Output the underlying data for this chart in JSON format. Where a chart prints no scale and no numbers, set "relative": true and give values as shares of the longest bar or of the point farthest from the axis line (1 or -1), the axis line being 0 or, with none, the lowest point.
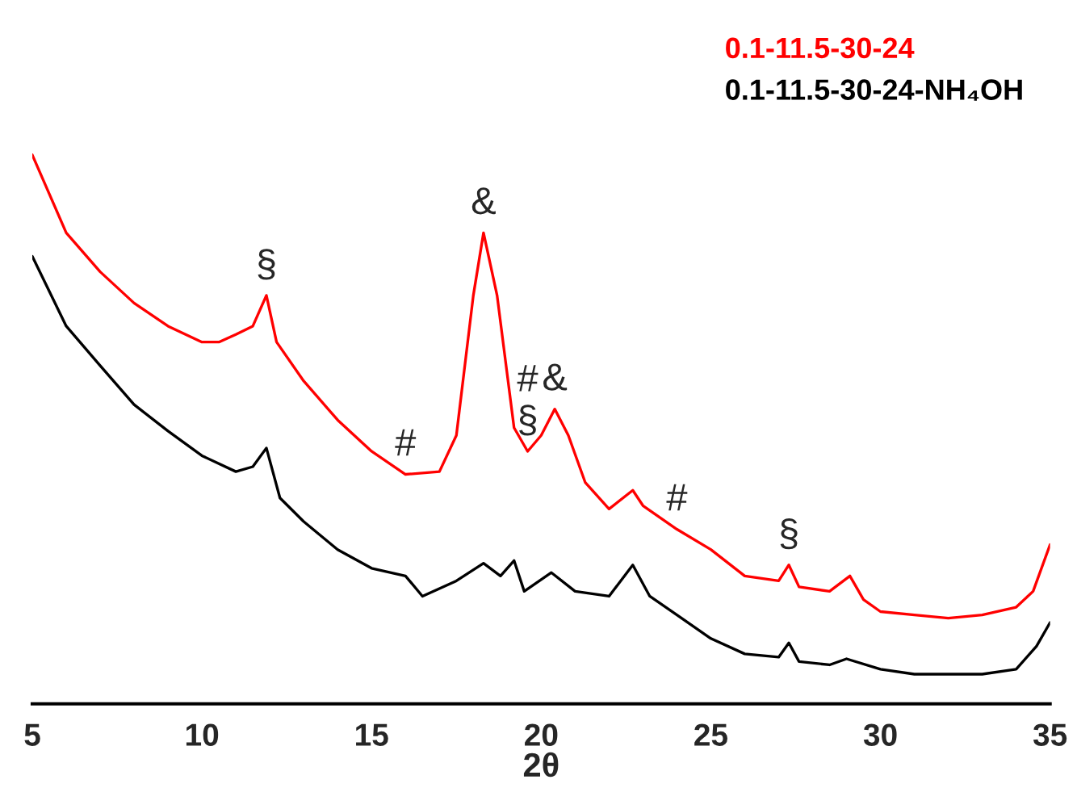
{
  "chart_data": {
    "type": "line",
    "relative": true,
    "xlabel": "2θ",
    "xlim": [
      5,
      35
    ],
    "xticks": [
      5,
      10,
      15,
      20,
      25,
      30,
      35
    ],
    "legend": "top right",
    "grid": false,
    "series": [
      {
        "name": "0.1-11.5-30-24",
        "color": "#ff0000",
        "x": [
          5,
          5.5,
          6,
          7,
          8,
          9,
          10,
          10.5,
          11,
          11.5,
          11.9,
          12.2,
          13,
          14,
          15,
          16,
          17,
          17.5,
          18,
          18.3,
          18.7,
          19.2,
          19.6,
          20,
          20.4,
          20.8,
          21.3,
          22,
          22.7,
          23,
          24,
          25,
          26,
          27,
          27.3,
          27.6,
          28.5,
          29.1,
          29.5,
          30,
          31,
          32,
          33,
          34,
          34.5,
          35
        ],
        "values": [
          1.0,
          0.929,
          0.858,
          0.787,
          0.73,
          0.688,
          0.659,
          0.659,
          0.673,
          0.688,
          0.744,
          0.659,
          0.588,
          0.517,
          0.46,
          0.418,
          0.423,
          0.489,
          0.744,
          0.858,
          0.744,
          0.503,
          0.46,
          0.489,
          0.537,
          0.489,
          0.403,
          0.355,
          0.389,
          0.361,
          0.318,
          0.281,
          0.233,
          0.224,
          0.253,
          0.213,
          0.205,
          0.233,
          0.19,
          0.168,
          0.162,
          0.156,
          0.162,
          0.176,
          0.205,
          0.29
        ]
      },
      {
        "name": "0.1-11.5-30-24-NH₄OH",
        "color": "#000000",
        "x": [
          5,
          6,
          7,
          8,
          9,
          10,
          11,
          11.5,
          11.9,
          12.3,
          13,
          14,
          15,
          16,
          16.5,
          17.5,
          18.3,
          18.8,
          19.2,
          19.5,
          20.3,
          21,
          22,
          22.7,
          23.2,
          24,
          25,
          26,
          27,
          27.3,
          27.6,
          28.5,
          29,
          30,
          31,
          32,
          33,
          34,
          34.6,
          35
        ],
        "values": [
          0.815,
          0.688,
          0.616,
          0.545,
          0.497,
          0.452,
          0.423,
          0.432,
          0.466,
          0.375,
          0.332,
          0.281,
          0.247,
          0.233,
          0.196,
          0.224,
          0.256,
          0.233,
          0.261,
          0.205,
          0.239,
          0.205,
          0.196,
          0.253,
          0.196,
          0.162,
          0.119,
          0.091,
          0.085,
          0.111,
          0.077,
          0.071,
          0.082,
          0.063,
          0.054,
          0.054,
          0.054,
          0.063,
          0.105,
          0.148
        ]
      }
    ],
    "annotations": [
      {
        "text": "§",
        "x": 11.9,
        "y": 0.744
      },
      {
        "text": "#",
        "x": 16,
        "y": 0.418
      },
      {
        "text": "&",
        "x": 18.3,
        "y": 0.858
      },
      {
        "text": "§",
        "x": 19.6,
        "y": 0.46
      },
      {
        "text": "#",
        "x": 19.2,
        "y": 0.503
      },
      {
        "text": "&",
        "x": 20.4,
        "y": 0.537
      },
      {
        "text": "#",
        "x": 24,
        "y": 0.318
      },
      {
        "text": "§",
        "x": 27.3,
        "y": 0.253
      }
    ]
  }
}
